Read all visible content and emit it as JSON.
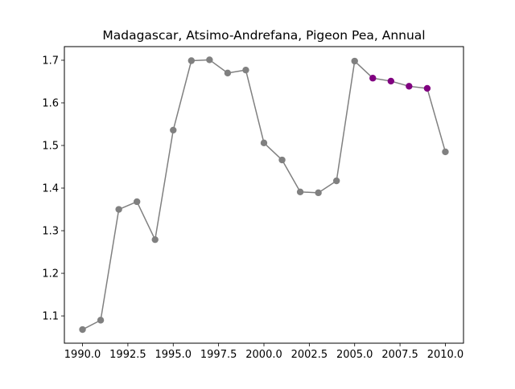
{
  "chart_data": {
    "type": "line",
    "title": "Madagascar, Atsimo-Andrefana, Pigeon Pea, Annual",
    "xlabel": "",
    "ylabel": "",
    "xlim": [
      1989.0,
      2011.0
    ],
    "ylim": [
      1.036,
      1.732
    ],
    "xticks": [
      1990.0,
      1992.5,
      1995.0,
      1997.5,
      2000.0,
      2002.5,
      2005.0,
      2007.5,
      2010.0
    ],
    "xtick_labels": [
      "1990.0",
      "1992.5",
      "1995.0",
      "1997.5",
      "2000.0",
      "2002.5",
      "2005.0",
      "2007.5",
      "2010.0"
    ],
    "yticks": [
      1.1,
      1.2,
      1.3,
      1.4,
      1.5,
      1.6,
      1.7
    ],
    "ytick_labels": [
      "1.1",
      "1.2",
      "1.3",
      "1.4",
      "1.5",
      "1.6",
      "1.7"
    ],
    "grid": false,
    "line_color": "#808080",
    "x": [
      1990,
      1991,
      1992,
      1993,
      1994,
      1995,
      1996,
      1997,
      1998,
      1999,
      2000,
      2001,
      2002,
      2003,
      2004,
      2005,
      2006,
      2007,
      2008,
      2009,
      2010
    ],
    "y": [
      1.068,
      1.09,
      1.35,
      1.368,
      1.279,
      1.536,
      1.699,
      1.701,
      1.67,
      1.677,
      1.506,
      1.466,
      1.391,
      1.389,
      1.417,
      1.698,
      1.658,
      1.651,
      1.639,
      1.634,
      1.485
    ],
    "marker_colors": [
      "#808080",
      "#808080",
      "#808080",
      "#808080",
      "#808080",
      "#808080",
      "#808080",
      "#808080",
      "#808080",
      "#808080",
      "#808080",
      "#808080",
      "#808080",
      "#808080",
      "#808080",
      "#808080",
      "#800080",
      "#800080",
      "#800080",
      "#800080",
      "#808080"
    ]
  }
}
